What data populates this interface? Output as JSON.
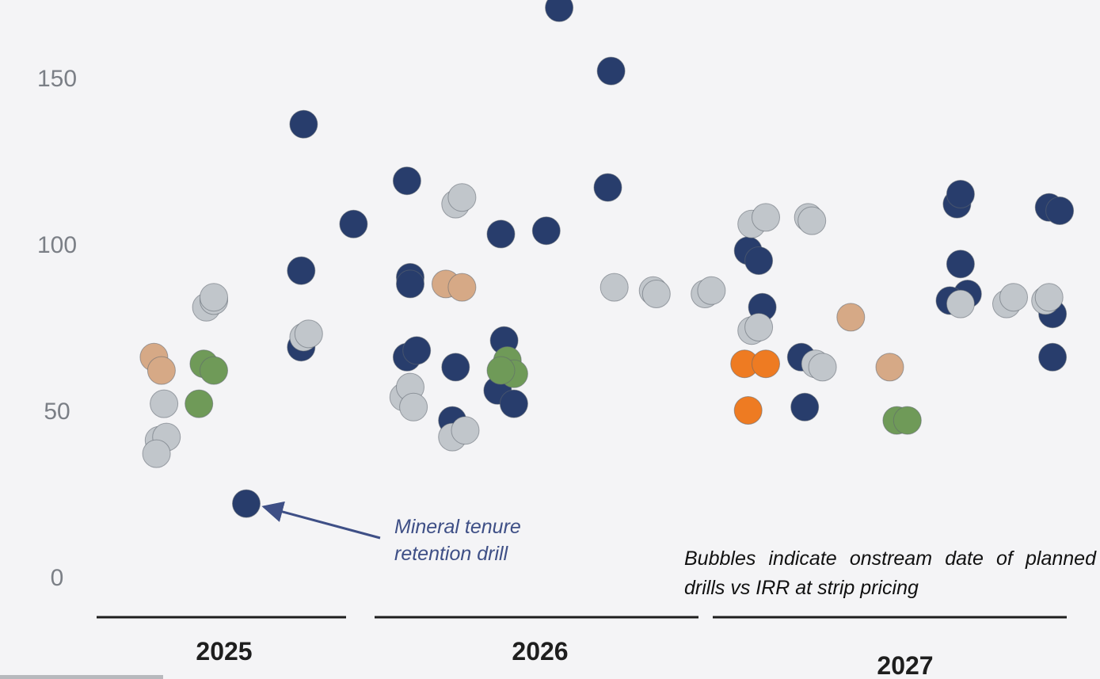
{
  "chart_data": {
    "type": "scatter",
    "title": "",
    "xlabel": "",
    "ylabel": "",
    "ylim": [
      0,
      170
    ],
    "yticks": [
      0,
      50,
      100,
      150
    ],
    "grid": false,
    "x_groups": [
      "2025",
      "2026",
      "2027"
    ],
    "colors": {
      "navy": "#283d6c",
      "gray": "#c1c6cb",
      "tan": "#d6a986",
      "green": "#6f9a58",
      "orange": "#ee7b22"
    },
    "series": [
      {
        "color_key": "navy",
        "points": [
          {
            "group": "2025",
            "pos": 0.6,
            "y": 22
          },
          {
            "group": "2025",
            "pos": 0.83,
            "y": 136
          },
          {
            "group": "2025",
            "pos": 0.82,
            "y": 92
          },
          {
            "group": "2025",
            "pos": 0.82,
            "y": 69
          },
          {
            "group": "2025",
            "pos": 1.03,
            "y": 106
          },
          {
            "group": "2026",
            "pos": 0.1,
            "y": 119
          },
          {
            "group": "2026",
            "pos": 0.11,
            "y": 90
          },
          {
            "group": "2026",
            "pos": 0.11,
            "y": 88
          },
          {
            "group": "2026",
            "pos": 0.1,
            "y": 66
          },
          {
            "group": "2026",
            "pos": 0.13,
            "y": 68
          },
          {
            "group": "2026",
            "pos": 0.24,
            "y": 47
          },
          {
            "group": "2026",
            "pos": 0.25,
            "y": 63
          },
          {
            "group": "2026",
            "pos": 0.39,
            "y": 103
          },
          {
            "group": "2026",
            "pos": 0.4,
            "y": 71
          },
          {
            "group": "2026",
            "pos": 0.38,
            "y": 56
          },
          {
            "group": "2026",
            "pos": 0.43,
            "y": 52
          },
          {
            "group": "2026",
            "pos": 0.53,
            "y": 104
          },
          {
            "group": "2026",
            "pos": 0.57,
            "y": 171
          },
          {
            "group": "2026",
            "pos": 0.73,
            "y": 152
          },
          {
            "group": "2026",
            "pos": 0.72,
            "y": 117
          },
          {
            "group": "2027",
            "pos": 0.1,
            "y": 98
          },
          {
            "group": "2027",
            "pos": 0.13,
            "y": 95
          },
          {
            "group": "2027",
            "pos": 0.14,
            "y": 81
          },
          {
            "group": "2027",
            "pos": 0.25,
            "y": 66
          },
          {
            "group": "2027",
            "pos": 0.26,
            "y": 51
          },
          {
            "group": "2027",
            "pos": 0.69,
            "y": 112
          },
          {
            "group": "2027",
            "pos": 0.7,
            "y": 115
          },
          {
            "group": "2027",
            "pos": 0.7,
            "y": 94
          },
          {
            "group": "2027",
            "pos": 0.72,
            "y": 85
          },
          {
            "group": "2027",
            "pos": 0.67,
            "y": 83
          },
          {
            "group": "2027",
            "pos": 0.95,
            "y": 111
          },
          {
            "group": "2027",
            "pos": 0.98,
            "y": 110
          },
          {
            "group": "2027",
            "pos": 0.96,
            "y": 79
          },
          {
            "group": "2027",
            "pos": 0.96,
            "y": 66
          }
        ]
      },
      {
        "color_key": "gray",
        "points": [
          {
            "group": "2025",
            "pos": 0.25,
            "y": 41
          },
          {
            "group": "2025",
            "pos": 0.28,
            "y": 42
          },
          {
            "group": "2025",
            "pos": 0.24,
            "y": 37
          },
          {
            "group": "2025",
            "pos": 0.27,
            "y": 52
          },
          {
            "group": "2025",
            "pos": 0.44,
            "y": 81
          },
          {
            "group": "2025",
            "pos": 0.47,
            "y": 83
          },
          {
            "group": "2025",
            "pos": 0.47,
            "y": 84
          },
          {
            "group": "2025",
            "pos": 0.83,
            "y": 72
          },
          {
            "group": "2025",
            "pos": 0.85,
            "y": 73
          },
          {
            "group": "2026",
            "pos": 0.09,
            "y": 54
          },
          {
            "group": "2026",
            "pos": 0.11,
            "y": 57
          },
          {
            "group": "2026",
            "pos": 0.12,
            "y": 51
          },
          {
            "group": "2026",
            "pos": 0.25,
            "y": 112
          },
          {
            "group": "2026",
            "pos": 0.27,
            "y": 114
          },
          {
            "group": "2026",
            "pos": 0.24,
            "y": 42
          },
          {
            "group": "2026",
            "pos": 0.28,
            "y": 44
          },
          {
            "group": "2026",
            "pos": 0.74,
            "y": 87
          },
          {
            "group": "2026",
            "pos": 0.86,
            "y": 86
          },
          {
            "group": "2026",
            "pos": 0.87,
            "y": 85
          },
          {
            "group": "2026",
            "pos": 1.02,
            "y": 85
          },
          {
            "group": "2026",
            "pos": 1.04,
            "y": 86
          },
          {
            "group": "2027",
            "pos": 0.11,
            "y": 106
          },
          {
            "group": "2027",
            "pos": 0.15,
            "y": 108
          },
          {
            "group": "2027",
            "pos": 0.11,
            "y": 74
          },
          {
            "group": "2027",
            "pos": 0.13,
            "y": 75
          },
          {
            "group": "2027",
            "pos": 0.27,
            "y": 108
          },
          {
            "group": "2027",
            "pos": 0.28,
            "y": 107
          },
          {
            "group": "2027",
            "pos": 0.29,
            "y": 64
          },
          {
            "group": "2027",
            "pos": 0.31,
            "y": 63
          },
          {
            "group": "2027",
            "pos": 0.7,
            "y": 82
          },
          {
            "group": "2027",
            "pos": 0.83,
            "y": 82
          },
          {
            "group": "2027",
            "pos": 0.85,
            "y": 84
          },
          {
            "group": "2027",
            "pos": 0.94,
            "y": 83
          },
          {
            "group": "2027",
            "pos": 0.95,
            "y": 84
          }
        ]
      },
      {
        "color_key": "tan",
        "points": [
          {
            "group": "2025",
            "pos": 0.23,
            "y": 66
          },
          {
            "group": "2025",
            "pos": 0.26,
            "y": 62
          },
          {
            "group": "2026",
            "pos": 0.22,
            "y": 88
          },
          {
            "group": "2026",
            "pos": 0.27,
            "y": 87
          },
          {
            "group": "2027",
            "pos": 0.39,
            "y": 78
          },
          {
            "group": "2027",
            "pos": 0.5,
            "y": 63
          }
        ]
      },
      {
        "color_key": "green",
        "points": [
          {
            "group": "2025",
            "pos": 0.43,
            "y": 64
          },
          {
            "group": "2025",
            "pos": 0.47,
            "y": 62
          },
          {
            "group": "2025",
            "pos": 0.41,
            "y": 52
          },
          {
            "group": "2026",
            "pos": 0.41,
            "y": 65
          },
          {
            "group": "2026",
            "pos": 0.43,
            "y": 61
          },
          {
            "group": "2026",
            "pos": 0.39,
            "y": 62
          },
          {
            "group": "2027",
            "pos": 0.52,
            "y": 47
          },
          {
            "group": "2027",
            "pos": 0.55,
            "y": 47
          }
        ]
      },
      {
        "color_key": "orange",
        "points": [
          {
            "group": "2027",
            "pos": 0.09,
            "y": 64
          },
          {
            "group": "2027",
            "pos": 0.15,
            "y": 64
          },
          {
            "group": "2027",
            "pos": 0.1,
            "y": 50
          }
        ]
      }
    ],
    "annotations": [
      {
        "text_lines": [
          "Mineral tenure",
          "retention drill"
        ],
        "arrow_to": {
          "group": "2025",
          "pos": 0.6,
          "y": 22
        }
      },
      {
        "text": "Bubbles indicate onstream date of planned drills vs IRR at strip pricing"
      }
    ]
  }
}
